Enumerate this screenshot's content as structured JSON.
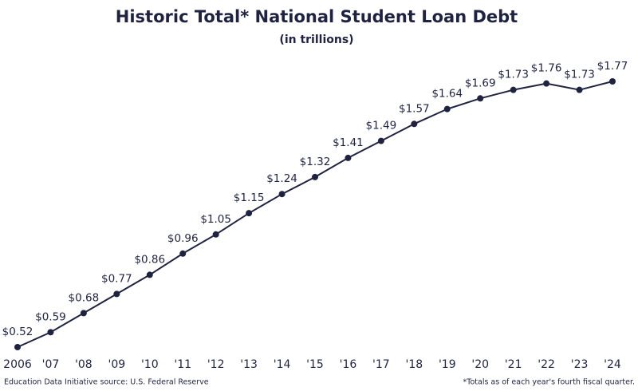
{
  "chart_data": {
    "type": "line",
    "title": "Historic Total* National Student Loan Debt",
    "subtitle": "(in trillions)",
    "source": "Education Data Initiative source: U.S. Federal Reserve",
    "note": "*Totals as of each year's fourth fiscal quarter.",
    "categories": [
      "2006",
      "'07",
      "'08",
      "'09",
      "'10",
      "'11",
      "'12",
      "'13",
      "'14",
      "'15",
      "'16",
      "'17",
      "'18",
      "'19",
      "'20",
      "'21",
      "'22",
      "'23",
      "'24"
    ],
    "series": [
      {
        "name": "Total student loan debt",
        "color": "#1f2340",
        "values": [
          0.52,
          0.59,
          0.68,
          0.77,
          0.86,
          0.96,
          1.05,
          1.15,
          1.24,
          1.32,
          1.41,
          1.49,
          1.57,
          1.64,
          1.69,
          1.73,
          1.76,
          1.73,
          1.77
        ],
        "value_labels": [
          "$0.52",
          "$0.59",
          "$0.68",
          "$0.77",
          "$0.86",
          "$0.96",
          "$1.05",
          "$1.15",
          "$1.24",
          "$1.32",
          "$1.41",
          "$1.49",
          "$1.57",
          "$1.64",
          "$1.69",
          "$1.73",
          "$1.76",
          "$1.73",
          "$1.77"
        ]
      }
    ]
  }
}
